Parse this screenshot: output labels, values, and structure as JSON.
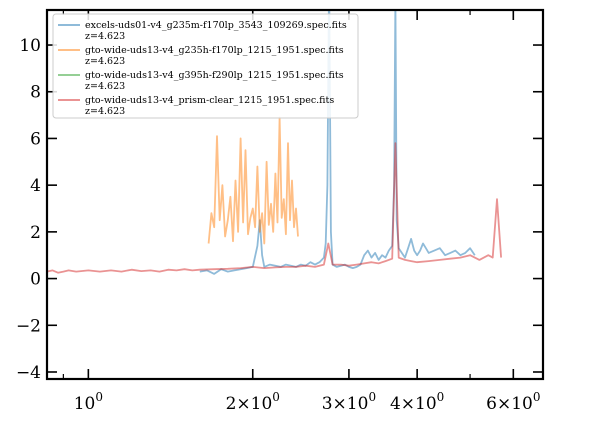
{
  "chart_data": {
    "type": "line",
    "title": "",
    "xlabel": "",
    "ylabel": "",
    "x_scale": "log",
    "xlim": [
      0.84,
      6.8
    ],
    "ylim": [
      -4.3,
      11.5
    ],
    "grid": false,
    "legend_position": "top-left",
    "x_ticks": [
      {
        "value": 1.0,
        "label": "10^0"
      },
      {
        "value": 2.0,
        "label": "2×10^0"
      },
      {
        "value": 3.0,
        "label": "3×10^0"
      },
      {
        "value": 4.0,
        "label": "4×10^0"
      },
      {
        "value": 6.0,
        "label": "6×10^0"
      }
    ],
    "y_ticks": [
      {
        "value": -4,
        "label": "−4"
      },
      {
        "value": -2,
        "label": "−2"
      },
      {
        "value": 0,
        "label": "0"
      },
      {
        "value": 2,
        "label": "2"
      },
      {
        "value": 4,
        "label": "4"
      },
      {
        "value": 6,
        "label": "6"
      },
      {
        "value": 8,
        "label": "8"
      },
      {
        "value": 10,
        "label": "10"
      }
    ],
    "series": [
      {
        "name": "excels-uds01-v4_g235m-f170lp_3543_109269.spec.fits",
        "redshift_label": "z=4.623",
        "color": "#1f77b4",
        "opacity": 0.5,
        "x": [
          1.6,
          1.65,
          1.7,
          1.75,
          1.8,
          1.85,
          1.9,
          1.95,
          2.0,
          2.04,
          2.06,
          2.08,
          2.1,
          2.15,
          2.2,
          2.25,
          2.3,
          2.35,
          2.4,
          2.45,
          2.5,
          2.55,
          2.6,
          2.65,
          2.7,
          2.72,
          2.74,
          2.76,
          2.78,
          2.8,
          2.85,
          2.9,
          2.95,
          3.0,
          3.05,
          3.1,
          3.15,
          3.2,
          3.25,
          3.3,
          3.35,
          3.4,
          3.45,
          3.5,
          3.55,
          3.6,
          3.63,
          3.65,
          3.67,
          3.7,
          3.75,
          3.8,
          3.85,
          3.9,
          3.95,
          4.0,
          4.05,
          4.1,
          4.15,
          4.2,
          4.3,
          4.4,
          4.5,
          4.6,
          4.7,
          4.8,
          4.9,
          5.0,
          5.1
        ],
        "y": [
          0.3,
          0.35,
          0.2,
          0.4,
          0.3,
          0.35,
          0.4,
          0.45,
          0.5,
          1.4,
          2.5,
          1.0,
          0.5,
          0.6,
          0.55,
          0.5,
          0.6,
          0.55,
          0.5,
          0.6,
          0.55,
          0.7,
          0.6,
          0.7,
          0.9,
          1.5,
          4.0,
          13.0,
          2.0,
          0.6,
          0.5,
          0.55,
          0.6,
          0.5,
          0.45,
          0.5,
          0.6,
          1.0,
          1.2,
          0.9,
          1.1,
          0.8,
          1.0,
          0.9,
          1.2,
          1.4,
          4.0,
          12.0,
          2.5,
          1.3,
          1.1,
          0.9,
          1.3,
          1.7,
          1.2,
          1.0,
          1.2,
          1.5,
          1.3,
          1.1,
          1.2,
          1.3,
          1.0,
          1.1,
          1.2,
          1.0,
          1.1,
          1.3,
          1.0
        ]
      },
      {
        "name": "gto-wide-uds13-v4_g235h-f170lp_1215_1951.spec.fits",
        "redshift_label": "z=4.623",
        "color": "#ff7f0e",
        "opacity": 0.5,
        "x": [
          1.66,
          1.68,
          1.7,
          1.72,
          1.74,
          1.76,
          1.78,
          1.8,
          1.82,
          1.84,
          1.86,
          1.88,
          1.9,
          1.92,
          1.94,
          1.96,
          1.98,
          2.0,
          2.02,
          2.04,
          2.06,
          2.08,
          2.1,
          2.12,
          2.14,
          2.16,
          2.18,
          2.2,
          2.22,
          2.24,
          2.26,
          2.28,
          2.3,
          2.32,
          2.34,
          2.36,
          2.38,
          2.4,
          2.42
        ],
        "y": [
          1.5,
          2.8,
          2.2,
          6.1,
          2.5,
          4.0,
          1.8,
          2.5,
          3.5,
          1.6,
          4.2,
          2.0,
          6.0,
          2.4,
          5.5,
          1.9,
          2.6,
          3.0,
          2.2,
          4.8,
          2.0,
          2.8,
          1.5,
          5.0,
          2.3,
          3.2,
          2.0,
          4.5,
          2.4,
          6.9,
          2.6,
          3.4,
          1.9,
          5.8,
          2.5,
          4.2,
          2.2,
          3.0,
          1.8
        ]
      },
      {
        "name": "gto-wide-uds13-v4_g395h-f290lp_1215_1951.spec.fits",
        "redshift_label": "z=4.623",
        "color": "#2ca02c",
        "opacity": 0.5,
        "x": [],
        "y": []
      },
      {
        "name": "gto-wide-uds13-v4_prism-clear_1215_1951.spec.fits",
        "redshift_label": "z=4.623",
        "color": "#d62728",
        "opacity": 0.5,
        "x": [
          0.84,
          0.86,
          0.88,
          0.9,
          0.92,
          0.95,
          1.0,
          1.05,
          1.1,
          1.15,
          1.2,
          1.25,
          1.3,
          1.35,
          1.4,
          1.45,
          1.5,
          1.55,
          1.6,
          1.7,
          1.8,
          1.9,
          2.0,
          2.1,
          2.2,
          2.3,
          2.4,
          2.5,
          2.6,
          2.7,
          2.75,
          2.8,
          2.9,
          3.0,
          3.1,
          3.2,
          3.3,
          3.4,
          3.5,
          3.6,
          3.65,
          3.7,
          3.8,
          3.9,
          4.0,
          4.2,
          4.4,
          4.6,
          4.8,
          5.0,
          5.2,
          5.4,
          5.5,
          5.6,
          5.7
        ],
        "y": [
          0.3,
          0.35,
          0.25,
          0.3,
          0.35,
          0.3,
          0.35,
          0.3,
          0.35,
          0.3,
          0.38,
          0.32,
          0.35,
          0.3,
          0.38,
          0.35,
          0.4,
          0.35,
          0.38,
          0.4,
          0.42,
          0.45,
          0.5,
          0.45,
          0.48,
          0.5,
          0.5,
          0.55,
          0.5,
          0.6,
          1.5,
          0.6,
          0.6,
          0.55,
          0.6,
          0.65,
          0.7,
          0.65,
          0.75,
          0.85,
          5.8,
          0.9,
          0.8,
          0.75,
          0.7,
          0.75,
          0.8,
          0.85,
          0.9,
          1.0,
          0.8,
          1.0,
          0.9,
          3.4,
          0.9
        ]
      }
    ]
  }
}
